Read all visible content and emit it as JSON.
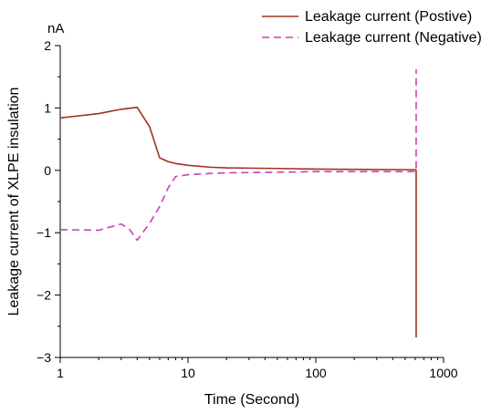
{
  "chart_data": {
    "type": "line",
    "xlabel": "Time (Second)",
    "ylabel": "Leakage current of XLPE insulation",
    "y_unit": "nA",
    "x_scale": "log",
    "xlim": [
      1,
      1000
    ],
    "ylim": [
      -3,
      2
    ],
    "x_ticks": [
      1,
      10,
      100,
      1000
    ],
    "x_tick_labels": [
      "1",
      "10",
      "100",
      "1000"
    ],
    "y_ticks": [
      -3,
      -2,
      -1,
      0,
      1,
      2
    ],
    "y_tick_labels": [
      "−3",
      "−2",
      "−1",
      "0",
      "1",
      "2"
    ],
    "grid": false,
    "legend_position": "top-right",
    "series": [
      {
        "name": "Leakage current (Postive)",
        "color": "#a0321e",
        "style": "solid",
        "x": [
          1,
          2,
          3,
          4,
          5,
          6,
          7,
          8,
          10,
          15,
          20,
          50,
          100,
          600,
          610,
          610
        ],
        "y": [
          0.84,
          0.91,
          0.98,
          1.01,
          0.7,
          0.2,
          0.14,
          0.11,
          0.08,
          0.05,
          0.04,
          0.03,
          0.02,
          0.01,
          0.0,
          -2.68
        ]
      },
      {
        "name": "Leakage current (Negative)",
        "color": "#cc3fb4",
        "style": "dashed",
        "x": [
          1,
          2,
          3,
          3.5,
          4,
          5,
          6,
          7,
          8,
          10,
          15,
          20,
          50,
          100,
          600,
          610,
          610
        ],
        "y": [
          -0.95,
          -0.96,
          -0.86,
          -0.95,
          -1.12,
          -0.85,
          -0.58,
          -0.28,
          -0.1,
          -0.07,
          -0.05,
          -0.04,
          -0.03,
          -0.02,
          -0.02,
          -0.02,
          1.62
        ]
      }
    ]
  }
}
